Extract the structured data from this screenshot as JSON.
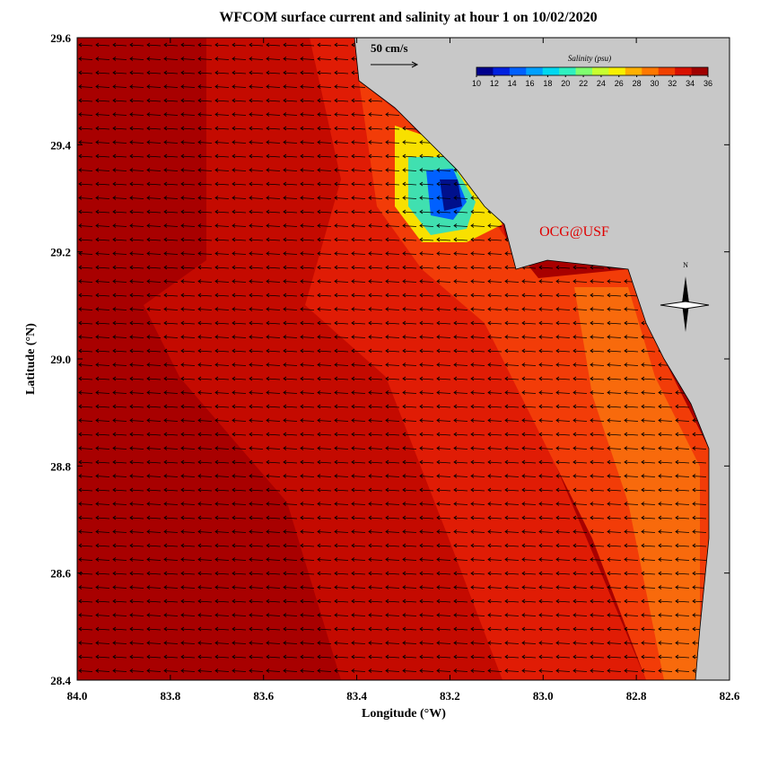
{
  "title": "WFCOM surface current and salinity at hour 1 on 10/02/2020",
  "map": {
    "xlabel": "Longitude (°W)",
    "ylabel": "Latitude (°N)",
    "xlim": [
      84.0,
      82.6
    ],
    "xticks": [
      {
        "value": 84.0,
        "label": "84.0"
      },
      83.8,
      83.6,
      83.4,
      83.2,
      {
        "value": 83.0,
        "label": "83.0"
      },
      82.8,
      82.6
    ],
    "ylim": [
      28.4,
      29.6
    ],
    "yticks": [
      28.4,
      28.6,
      28.8,
      {
        "value": 29.0,
        "label": "29.0"
      },
      29.2,
      29.4,
      29.6
    ],
    "scale_label": "50 cm/s",
    "credit": "OCG@USF",
    "north_label": "N",
    "colorbar": {
      "title": "Salinity (psu)",
      "lim": [
        10,
        36
      ],
      "ticks": [
        10,
        12,
        14,
        16,
        18,
        20,
        22,
        24,
        26,
        28,
        30,
        32,
        34,
        36
      ],
      "colors": [
        "#00008c",
        "#0020e0",
        "#0060ff",
        "#00a0ff",
        "#00d8f0",
        "#30f0c0",
        "#80ff70",
        "#c8ff30",
        "#f8f000",
        "#ffb000",
        "#ff7800",
        "#f04000",
        "#d81000",
        "#a00000"
      ]
    }
  }
}
